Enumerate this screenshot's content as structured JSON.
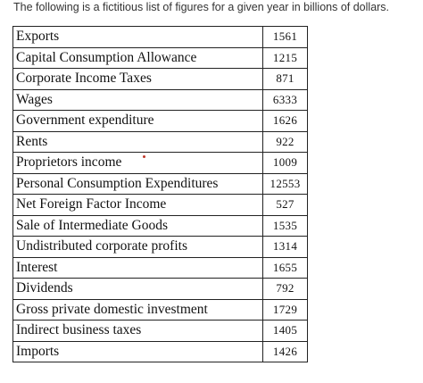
{
  "caption": "The following is a fictitious list of figures for a given year in billions of dollars.",
  "rows": [
    {
      "label": "Exports",
      "value": "1561"
    },
    {
      "label": "Capital Consumption Allowance",
      "value": "1215"
    },
    {
      "label": "Corporate Income Taxes",
      "value": "871"
    },
    {
      "label": "Wages",
      "value": "6333"
    },
    {
      "label": "Government expenditure",
      "value": "1626"
    },
    {
      "label": "Rents",
      "value": "922"
    },
    {
      "label": "Proprietors income",
      "value": "1009"
    },
    {
      "label": "Personal Consumption Expenditures",
      "value": "12553"
    },
    {
      "label": "Net Foreign Factor Income",
      "value": "527"
    },
    {
      "label": "Sale of Intermediate Goods",
      "value": "1535"
    },
    {
      "label": "Undistributed corporate profits",
      "value": "1314"
    },
    {
      "label": "Interest",
      "value": "1655"
    },
    {
      "label": "Dividends",
      "value": "792"
    },
    {
      "label": "Gross private domestic investment",
      "value": "1729"
    },
    {
      "label": "Indirect business taxes",
      "value": "1405"
    },
    {
      "label": "Imports",
      "value": "1426"
    }
  ],
  "colors": {
    "border": "#222222",
    "text": "#111111",
    "caption": "#333333",
    "mark": "#c0392b"
  }
}
